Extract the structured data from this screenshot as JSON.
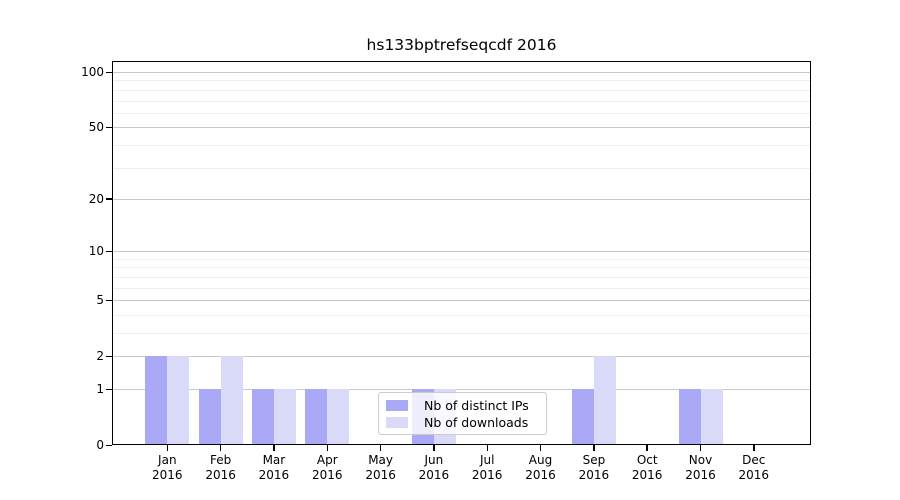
{
  "title": "hs133bptrefseqcdf 2016",
  "chart_data": {
    "type": "bar",
    "title": "hs133bptrefseqcdf 2016",
    "x_categories": [
      {
        "month": "Jan",
        "year": "2016"
      },
      {
        "month": "Feb",
        "year": "2016"
      },
      {
        "month": "Mar",
        "year": "2016"
      },
      {
        "month": "Apr",
        "year": "2016"
      },
      {
        "month": "May",
        "year": "2016"
      },
      {
        "month": "Jun",
        "year": "2016"
      },
      {
        "month": "Jul",
        "year": "2016"
      },
      {
        "month": "Aug",
        "year": "2016"
      },
      {
        "month": "Sep",
        "year": "2016"
      },
      {
        "month": "Oct",
        "year": "2016"
      },
      {
        "month": "Nov",
        "year": "2016"
      },
      {
        "month": "Dec",
        "year": "2016"
      }
    ],
    "series": [
      {
        "name": "Nb of distinct IPs",
        "color": "#a9a9f5",
        "values": [
          2,
          1,
          1,
          1,
          0,
          1,
          0,
          0,
          1,
          0,
          1,
          0
        ]
      },
      {
        "name": "Nb of downloads",
        "color": "#d9d9f8",
        "values": [
          2,
          2,
          1,
          1,
          0,
          1,
          0,
          0,
          2,
          0,
          1,
          0
        ]
      }
    ],
    "y_axis": {
      "scale": "log10(1+x)",
      "tick_values": [
        0,
        1,
        2,
        5,
        10,
        20,
        50,
        100
      ],
      "minor_grid_values": [
        3,
        4,
        6,
        7,
        8,
        9,
        30,
        40,
        60,
        70,
        80,
        90
      ],
      "range": [
        0,
        115
      ]
    },
    "grid": "horizontal major + minor",
    "legend_position": "lower center-left, inside plot"
  },
  "colors": {
    "bar_distinct_ips": "#a9a9f5",
    "bar_downloads": "#d9d9f8",
    "grid_major": "#c9c9c9",
    "grid_minor": "#eeeeee",
    "spine": "#000000",
    "legend_border": "#cccccc",
    "background": "#ffffff"
  }
}
